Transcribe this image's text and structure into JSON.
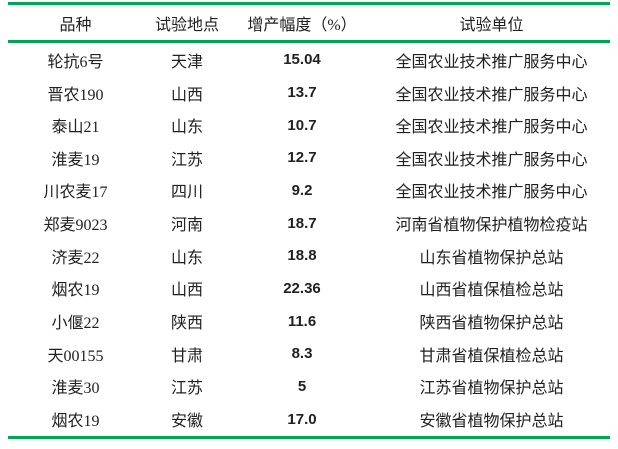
{
  "colors": {
    "accent_green": "#00A651",
    "text": "#212121",
    "background": "#FFFFFF"
  },
  "table": {
    "columns": [
      {
        "key": "variety",
        "label": "品种"
      },
      {
        "key": "location",
        "label": "试验地点"
      },
      {
        "key": "increase_pct",
        "label": "增产幅度（%）"
      },
      {
        "key": "unit",
        "label": "试验单位"
      }
    ],
    "rows": [
      {
        "variety": "轮抗6号",
        "location": "天津",
        "increase_pct": "15.04",
        "unit": "全国农业技术推广服务中心"
      },
      {
        "variety": "晋农190",
        "location": "山西",
        "increase_pct": "13.7",
        "unit": "全国农业技术推广服务中心"
      },
      {
        "variety": "泰山21",
        "location": "山东",
        "increase_pct": "10.7",
        "unit": "全国农业技术推广服务中心"
      },
      {
        "variety": "淮麦19",
        "location": "江苏",
        "increase_pct": "12.7",
        "unit": "全国农业技术推广服务中心"
      },
      {
        "variety": "川农麦17",
        "location": "四川",
        "increase_pct": "9.2",
        "unit": "全国农业技术推广服务中心"
      },
      {
        "variety": "郑麦9023",
        "location": "河南",
        "increase_pct": "18.7",
        "unit": "河南省植物保护植物检疫站"
      },
      {
        "variety": "济麦22",
        "location": "山东",
        "increase_pct": "18.8",
        "unit": "山东省植物保护总站"
      },
      {
        "variety": "烟农19",
        "location": "山西",
        "increase_pct": "22.36",
        "unit": "山西省植保植检总站"
      },
      {
        "variety": "小偃22",
        "location": "陕西",
        "increase_pct": "11.6",
        "unit": "陕西省植物保护总站"
      },
      {
        "variety": "天00155",
        "location": "甘肃",
        "increase_pct": "8.3",
        "unit": "甘肃省植保植检总站"
      },
      {
        "variety": "淮麦30",
        "location": "江苏",
        "increase_pct": "5",
        "unit": "江苏省植物保护总站"
      },
      {
        "variety": "烟农19",
        "location": "安徽",
        "increase_pct": "17.0",
        "unit": "安徽省植物保护总站"
      }
    ]
  }
}
